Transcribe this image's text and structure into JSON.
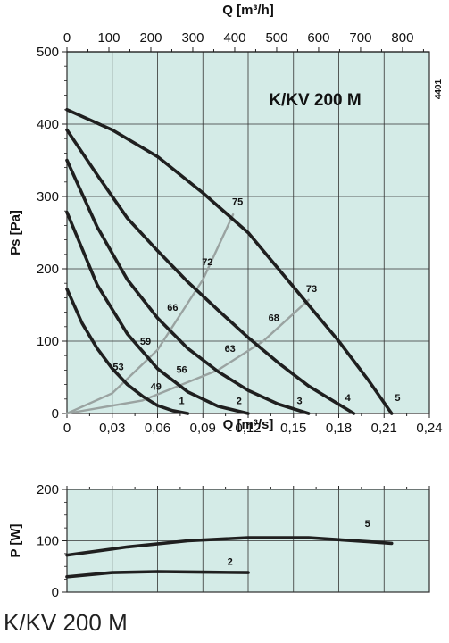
{
  "chart_data": [
    {
      "type": "line",
      "title": "K/KV 200 M",
      "code": "4401",
      "xlabel": "Q [m³/s]",
      "x2label": "Q [m³/h]",
      "ylabel": "Ps [Pa]",
      "xlim": [
        0,
        0.24
      ],
      "ylim": [
        0,
        500
      ],
      "x2lim": [
        0,
        864
      ],
      "xticks": [
        "0",
        "0,03",
        "0,06",
        "0,09",
        "0,12",
        "0,15",
        "0,18",
        "0,21",
        "0,24"
      ],
      "x2ticks": [
        "0",
        "100",
        "200",
        "300",
        "400",
        "500",
        "600",
        "700",
        "800"
      ],
      "yticks": [
        "0",
        "100",
        "200",
        "300",
        "400",
        "500"
      ],
      "grid": true,
      "background": "#d4ebe7",
      "curve_color": "#1f1f1f",
      "efficiency_color": "#9aa3a1",
      "series": [
        {
          "name": "1",
          "x": [
            0,
            0.01,
            0.02,
            0.03,
            0.04,
            0.05,
            0.06,
            0.07,
            0.08
          ],
          "y": [
            172,
            125,
            90,
            62,
            40,
            24,
            11,
            4,
            0
          ]
        },
        {
          "name": "2",
          "x": [
            0,
            0.02,
            0.04,
            0.06,
            0.08,
            0.1,
            0.12
          ],
          "y": [
            278,
            178,
            110,
            62,
            30,
            10,
            0
          ]
        },
        {
          "name": "3",
          "x": [
            0,
            0.02,
            0.04,
            0.06,
            0.08,
            0.1,
            0.12,
            0.14,
            0.16
          ],
          "y": [
            350,
            258,
            185,
            132,
            90,
            58,
            32,
            13,
            0
          ]
        },
        {
          "name": "4",
          "x": [
            0,
            0.02,
            0.04,
            0.06,
            0.08,
            0.1,
            0.12,
            0.14,
            0.16,
            0.19
          ],
          "y": [
            392,
            330,
            270,
            225,
            182,
            143,
            105,
            70,
            38,
            0
          ]
        },
        {
          "name": "5",
          "x": [
            0,
            0.03,
            0.06,
            0.09,
            0.12,
            0.15,
            0.18,
            0.2,
            0.215
          ],
          "y": [
            420,
            392,
            355,
            305,
            250,
            175,
            100,
            45,
            0
          ]
        }
      ],
      "efficiency_lines": [
        {
          "points": [
            {
              "x": 0,
              "y": 0
            },
            {
              "x": 0.03,
              "y": 28
            },
            {
              "x": 0.06,
              "y": 88
            },
            {
              "x": 0.09,
              "y": 185
            },
            {
              "x": 0.11,
              "y": 275
            }
          ]
        },
        {
          "points": [
            {
              "x": 0,
              "y": 0
            },
            {
              "x": 0.05,
              "y": 18
            },
            {
              "x": 0.1,
              "y": 60
            },
            {
              "x": 0.13,
              "y": 100
            },
            {
              "x": 0.16,
              "y": 157
            }
          ]
        }
      ],
      "efficiency_labels": [
        {
          "text": "49",
          "x": 0.059,
          "y": 33
        },
        {
          "text": "53",
          "x": 0.034,
          "y": 60
        },
        {
          "text": "56",
          "x": 0.076,
          "y": 56
        },
        {
          "text": "59",
          "x": 0.052,
          "y": 95
        },
        {
          "text": "63",
          "x": 0.108,
          "y": 85
        },
        {
          "text": "66",
          "x": 0.07,
          "y": 142
        },
        {
          "text": "68",
          "x": 0.137,
          "y": 128
        },
        {
          "text": "72",
          "x": 0.093,
          "y": 205
        },
        {
          "text": "73",
          "x": 0.162,
          "y": 168
        },
        {
          "text": "75",
          "x": 0.113,
          "y": 288
        }
      ],
      "curve_labels": [
        {
          "text": "1",
          "x": 0.076,
          "y": 13
        },
        {
          "text": "2",
          "x": 0.114,
          "y": 13
        },
        {
          "text": "3",
          "x": 0.154,
          "y": 13
        },
        {
          "text": "4",
          "x": 0.186,
          "y": 17
        },
        {
          "text": "5",
          "x": 0.219,
          "y": 17
        }
      ]
    },
    {
      "type": "line",
      "ylabel": "P [W]",
      "xlim": [
        0,
        0.24
      ],
      "ylim": [
        0,
        200
      ],
      "yticks": [
        "0",
        "100",
        "200"
      ],
      "grid": true,
      "series": [
        {
          "name": "2",
          "x": [
            0,
            0.03,
            0.06,
            0.09,
            0.12
          ],
          "y": [
            30,
            38,
            40,
            39,
            38
          ]
        },
        {
          "name": "5",
          "x": [
            0,
            0.04,
            0.08,
            0.12,
            0.16,
            0.2,
            0.215
          ],
          "y": [
            72,
            88,
            100,
            106,
            106,
            98,
            95
          ]
        }
      ],
      "curve_labels": [
        {
          "text": "2",
          "x": 0.108,
          "y": 53
        },
        {
          "text": "5",
          "x": 0.199,
          "y": 127
        }
      ]
    }
  ],
  "footer_title": "K/KV 200 M"
}
